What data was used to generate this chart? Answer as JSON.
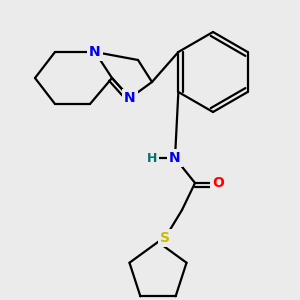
{
  "bg_color": "#ebebeb",
  "bond_color": "#000000",
  "bond_width": 1.6,
  "atom_colors": {
    "N": "#0000ee",
    "O": "#ff0000",
    "S": "#ccbb00",
    "H": "#007070",
    "C": "#000000"
  },
  "figsize": [
    3.0,
    3.0
  ],
  "dpi": 100
}
